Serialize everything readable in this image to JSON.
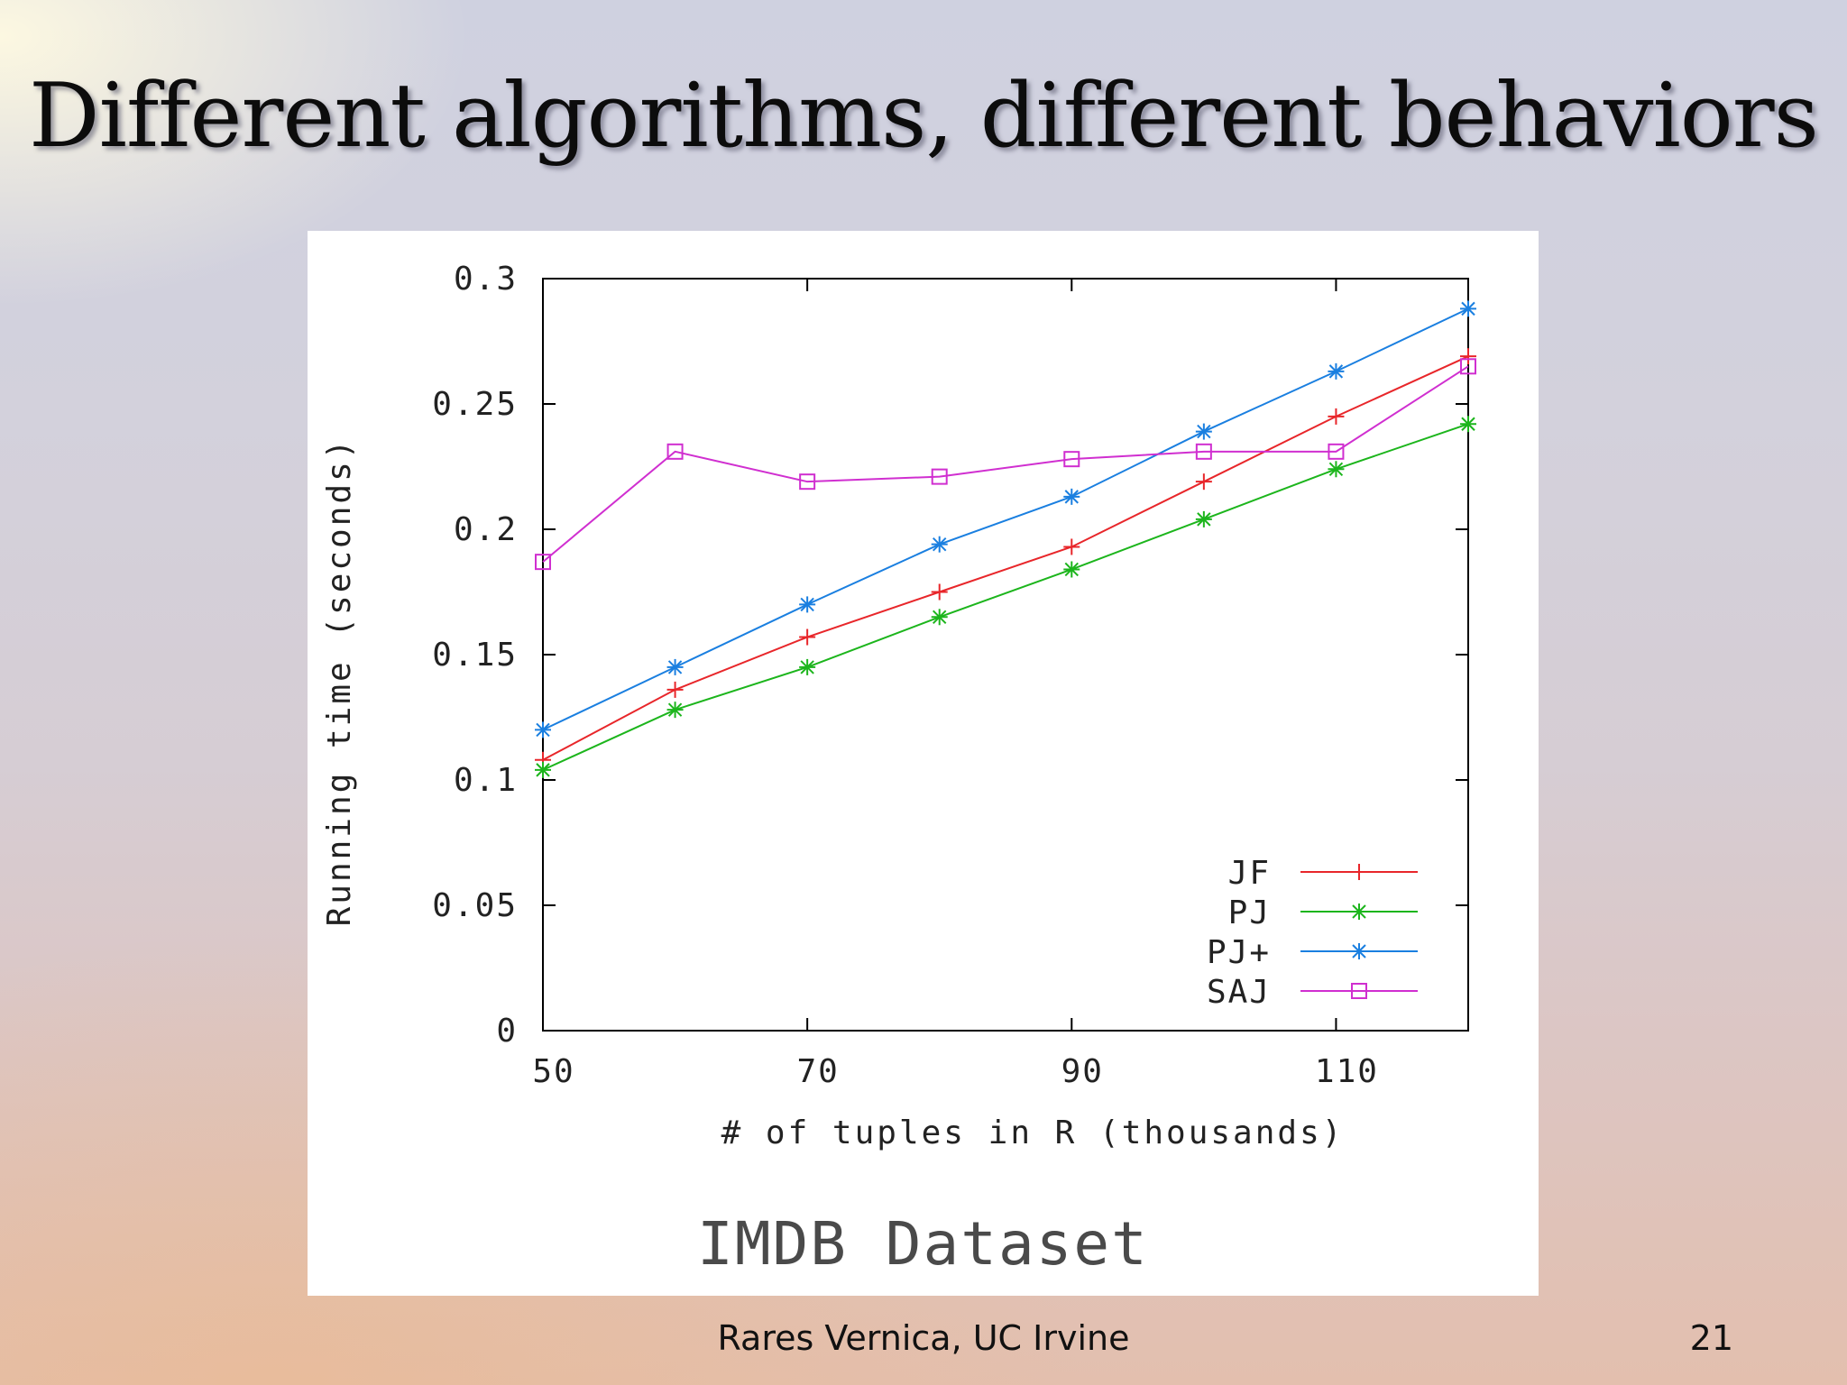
{
  "slide": {
    "title": "Different algorithms, different behaviors",
    "author": "Rares Vernica, UC Irvine",
    "page_number": "21",
    "dataset_caption": "IMDB Dataset"
  },
  "chart_data": {
    "type": "line",
    "title": "",
    "xlabel": "# of tuples in R (thousands)",
    "ylabel": "Running time (seconds)",
    "x": [
      50,
      60,
      70,
      80,
      90,
      100,
      110,
      120
    ],
    "xlim": [
      50,
      120
    ],
    "ylim": [
      0,
      0.3
    ],
    "xticks": [
      50,
      70,
      90,
      110
    ],
    "xtick_labels": [
      "50",
      "70",
      "90",
      "110"
    ],
    "yticks": [
      0,
      0.05,
      0.1,
      0.15,
      0.2,
      0.25,
      0.3
    ],
    "ytick_labels": [
      "0",
      "0.05",
      "0.1",
      "0.15",
      "0.2",
      "0.25",
      "0.3"
    ],
    "grid": false,
    "legend_position": "bottom-right",
    "series": [
      {
        "name": "JF",
        "color": "#e8262a",
        "marker": "plus",
        "values": [
          0.108,
          0.136,
          0.157,
          0.175,
          0.193,
          0.219,
          0.245,
          0.269
        ]
      },
      {
        "name": "PJ",
        "color": "#1cb51c",
        "marker": "star",
        "values": [
          0.104,
          0.128,
          0.145,
          0.165,
          0.184,
          0.204,
          0.224,
          0.242
        ]
      },
      {
        "name": "PJ+",
        "color": "#1a7fe0",
        "marker": "star",
        "values": [
          0.12,
          0.145,
          0.17,
          0.194,
          0.213,
          0.239,
          0.263,
          0.288
        ]
      },
      {
        "name": "SAJ",
        "color": "#d02fd0",
        "marker": "square",
        "values": [
          0.187,
          0.231,
          0.219,
          0.221,
          0.228,
          0.231,
          0.231,
          0.265
        ]
      }
    ]
  }
}
